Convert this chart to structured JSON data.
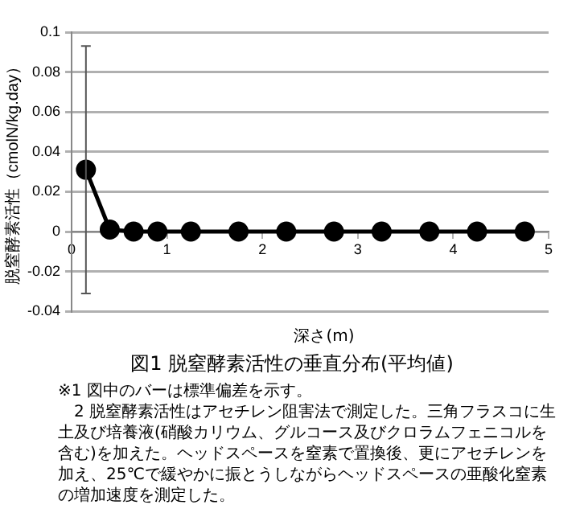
{
  "chart_data": {
    "type": "line",
    "title": "図1 脱窒酵素活性の垂直分布(平均値)",
    "xlabel": "深さ(m)",
    "ylabel": "脱窒酵素活性（cmolN/kg.day）",
    "x": [
      0.15,
      0.4,
      0.65,
      0.9,
      1.25,
      1.75,
      2.25,
      2.75,
      3.25,
      3.75,
      4.25,
      4.75
    ],
    "series": [
      {
        "color": "#000000",
        "values": [
          0.031,
          0.001,
          0,
          0,
          0,
          0,
          0,
          0,
          0,
          0,
          0,
          0
        ],
        "errors": [
          0.062,
          null,
          null,
          null,
          null,
          null,
          null,
          null,
          null,
          null,
          null,
          null
        ]
      }
    ],
    "xlim": [
      0,
      5
    ],
    "xticks": [
      0,
      1,
      2,
      3,
      4,
      5
    ],
    "ylim": [
      -0.04,
      0.1
    ],
    "yticks": [
      -0.04,
      -0.02,
      0,
      0.02,
      0.04,
      0.06,
      0.08,
      0.1
    ],
    "grid": "y",
    "legend": false,
    "marker": "circle",
    "line_style": "solid",
    "annotations": [
      "※1 図中のバーは標準偏差を示す。",
      "2 脱窒酵素活性はアセチレン阻害法で測定した。三角フラスコに生土及び培養液(硝酸カリウム、グルコース及びクロラムフェニコルを含む)を加えた。ヘッドスペースを窒素で置換後、更にアセチレンを加え、25℃で緩やかに振とうしながらヘッドスペースの亜酸化窒素の増加速度を測定した。"
    ]
  }
}
